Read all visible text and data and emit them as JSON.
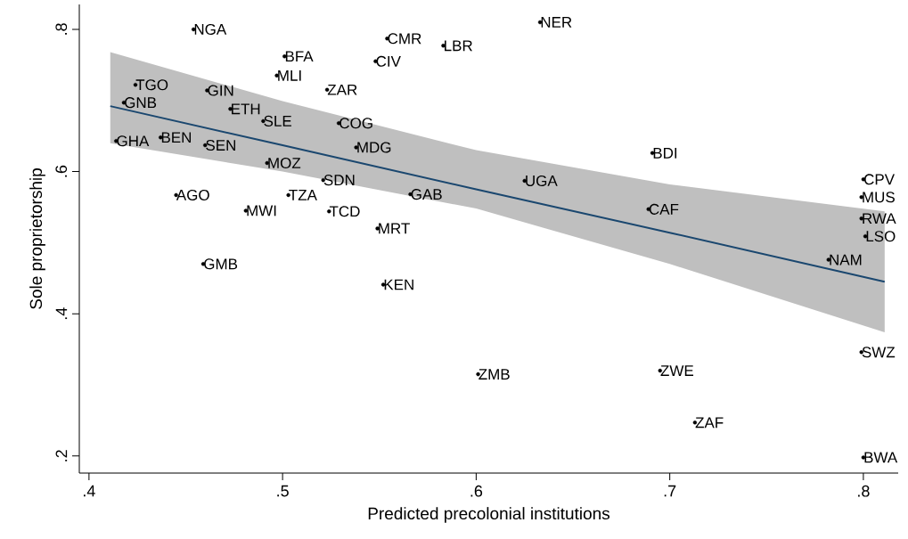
{
  "chart_data": {
    "type": "scatter",
    "xlabel": "Predicted precolonial institutions",
    "ylabel": "Sole proprietorship",
    "xlim": [
      0.395,
      0.818
    ],
    "ylim": [
      0.176,
      0.835
    ],
    "xticks": [
      {
        "value": 0.4,
        "label": ".4"
      },
      {
        "value": 0.5,
        "label": ".5"
      },
      {
        "value": 0.6,
        "label": ".6"
      },
      {
        "value": 0.7,
        "label": ".7"
      },
      {
        "value": 0.8,
        "label": ".8"
      }
    ],
    "yticks": [
      {
        "value": 0.2,
        "label": ".2"
      },
      {
        "value": 0.4,
        "label": ".4"
      },
      {
        "value": 0.6,
        "label": ".6"
      },
      {
        "value": 0.8,
        "label": ".8"
      }
    ],
    "series": [
      {
        "x": [
          0.454,
          0.501,
          0.497,
          0.523,
          0.424,
          0.418,
          0.461,
          0.473,
          0.49,
          0.529,
          0.414,
          0.437,
          0.46,
          0.492,
          0.538,
          0.521,
          0.445,
          0.503,
          0.481,
          0.524,
          0.459,
          0.554,
          0.548,
          0.583,
          0.633,
          0.566,
          0.625,
          0.549,
          0.552,
          0.601,
          0.691,
          0.689,
          0.8,
          0.799,
          0.799,
          0.801,
          0.782,
          0.799,
          0.695,
          0.713,
          0.8
        ],
        "values": [
          0.8,
          0.762,
          0.735,
          0.715,
          0.722,
          0.697,
          0.714,
          0.688,
          0.671,
          0.668,
          0.643,
          0.648,
          0.637,
          0.612,
          0.634,
          0.588,
          0.567,
          0.567,
          0.545,
          0.544,
          0.47,
          0.787,
          0.755,
          0.777,
          0.81,
          0.568,
          0.587,
          0.52,
          0.441,
          0.315,
          0.626,
          0.547,
          0.589,
          0.564,
          0.534,
          0.509,
          0.476,
          0.346,
          0.32,
          0.247,
          0.198
        ],
        "color": "#000000"
      },
      {
        "type": "line",
        "color": "#1a476f",
        "x": [
          0.411,
          0.5,
          0.6,
          0.7,
          0.811
        ],
        "values": [
          0.692,
          0.637,
          0.575,
          0.514,
          0.445
        ],
        "lower": [
          0.64,
          0.6,
          0.548,
          0.47,
          0.374
        ],
        "upper": [
          0.768,
          0.699,
          0.63,
          0.582,
          0.544
        ]
      }
    ],
    "annotations": [
      {
        "text": "NGA",
        "x": 0.454,
        "y": 0.8
      },
      {
        "text": "BFA",
        "x": 0.501,
        "y": 0.762
      },
      {
        "text": "MLI",
        "x": 0.497,
        "y": 0.735
      },
      {
        "text": "ZAR",
        "x": 0.523,
        "y": 0.715
      },
      {
        "text": "TGO",
        "x": 0.424,
        "y": 0.722
      },
      {
        "text": "GNB",
        "x": 0.418,
        "y": 0.697
      },
      {
        "text": "GIN",
        "x": 0.461,
        "y": 0.714
      },
      {
        "text": "ETH",
        "x": 0.473,
        "y": 0.688
      },
      {
        "text": "SLE",
        "x": 0.49,
        "y": 0.671
      },
      {
        "text": "COG",
        "x": 0.529,
        "y": 0.668
      },
      {
        "text": "GHA",
        "x": 0.414,
        "y": 0.643
      },
      {
        "text": "BEN",
        "x": 0.437,
        "y": 0.648
      },
      {
        "text": "SEN",
        "x": 0.46,
        "y": 0.637
      },
      {
        "text": "MOZ",
        "x": 0.492,
        "y": 0.612
      },
      {
        "text": "MDG",
        "x": 0.538,
        "y": 0.634
      },
      {
        "text": "SDN",
        "x": 0.521,
        "y": 0.588
      },
      {
        "text": "AGO",
        "x": 0.445,
        "y": 0.567
      },
      {
        "text": "TZA",
        "x": 0.503,
        "y": 0.567
      },
      {
        "text": "MWI",
        "x": 0.481,
        "y": 0.545
      },
      {
        "text": "TCD",
        "x": 0.524,
        "y": 0.544
      },
      {
        "text": "GMB",
        "x": 0.459,
        "y": 0.47
      },
      {
        "text": "CMR",
        "x": 0.554,
        "y": 0.787
      },
      {
        "text": "CIV",
        "x": 0.548,
        "y": 0.755
      },
      {
        "text": "LBR",
        "x": 0.583,
        "y": 0.777
      },
      {
        "text": "NER",
        "x": 0.633,
        "y": 0.81
      },
      {
        "text": "GAB",
        "x": 0.566,
        "y": 0.568
      },
      {
        "text": "UGA",
        "x": 0.625,
        "y": 0.587
      },
      {
        "text": "MRT",
        "x": 0.549,
        "y": 0.52
      },
      {
        "text": "KEN",
        "x": 0.552,
        "y": 0.441
      },
      {
        "text": "ZMB",
        "x": 0.601,
        "y": 0.315
      },
      {
        "text": "BDI",
        "x": 0.691,
        "y": 0.626
      },
      {
        "text": "CAF",
        "x": 0.689,
        "y": 0.547
      },
      {
        "text": "CPV",
        "x": 0.8,
        "y": 0.589
      },
      {
        "text": "MUS",
        "x": 0.799,
        "y": 0.564
      },
      {
        "text": "RWA",
        "x": 0.799,
        "y": 0.534
      },
      {
        "text": "LSO",
        "x": 0.801,
        "y": 0.509
      },
      {
        "text": "NAM",
        "x": 0.782,
        "y": 0.476
      },
      {
        "text": "SWZ",
        "x": 0.799,
        "y": 0.346
      },
      {
        "text": "ZWE",
        "x": 0.695,
        "y": 0.32
      },
      {
        "text": "ZAF",
        "x": 0.713,
        "y": 0.247
      },
      {
        "text": "BWA",
        "x": 0.8,
        "y": 0.198
      }
    ]
  }
}
